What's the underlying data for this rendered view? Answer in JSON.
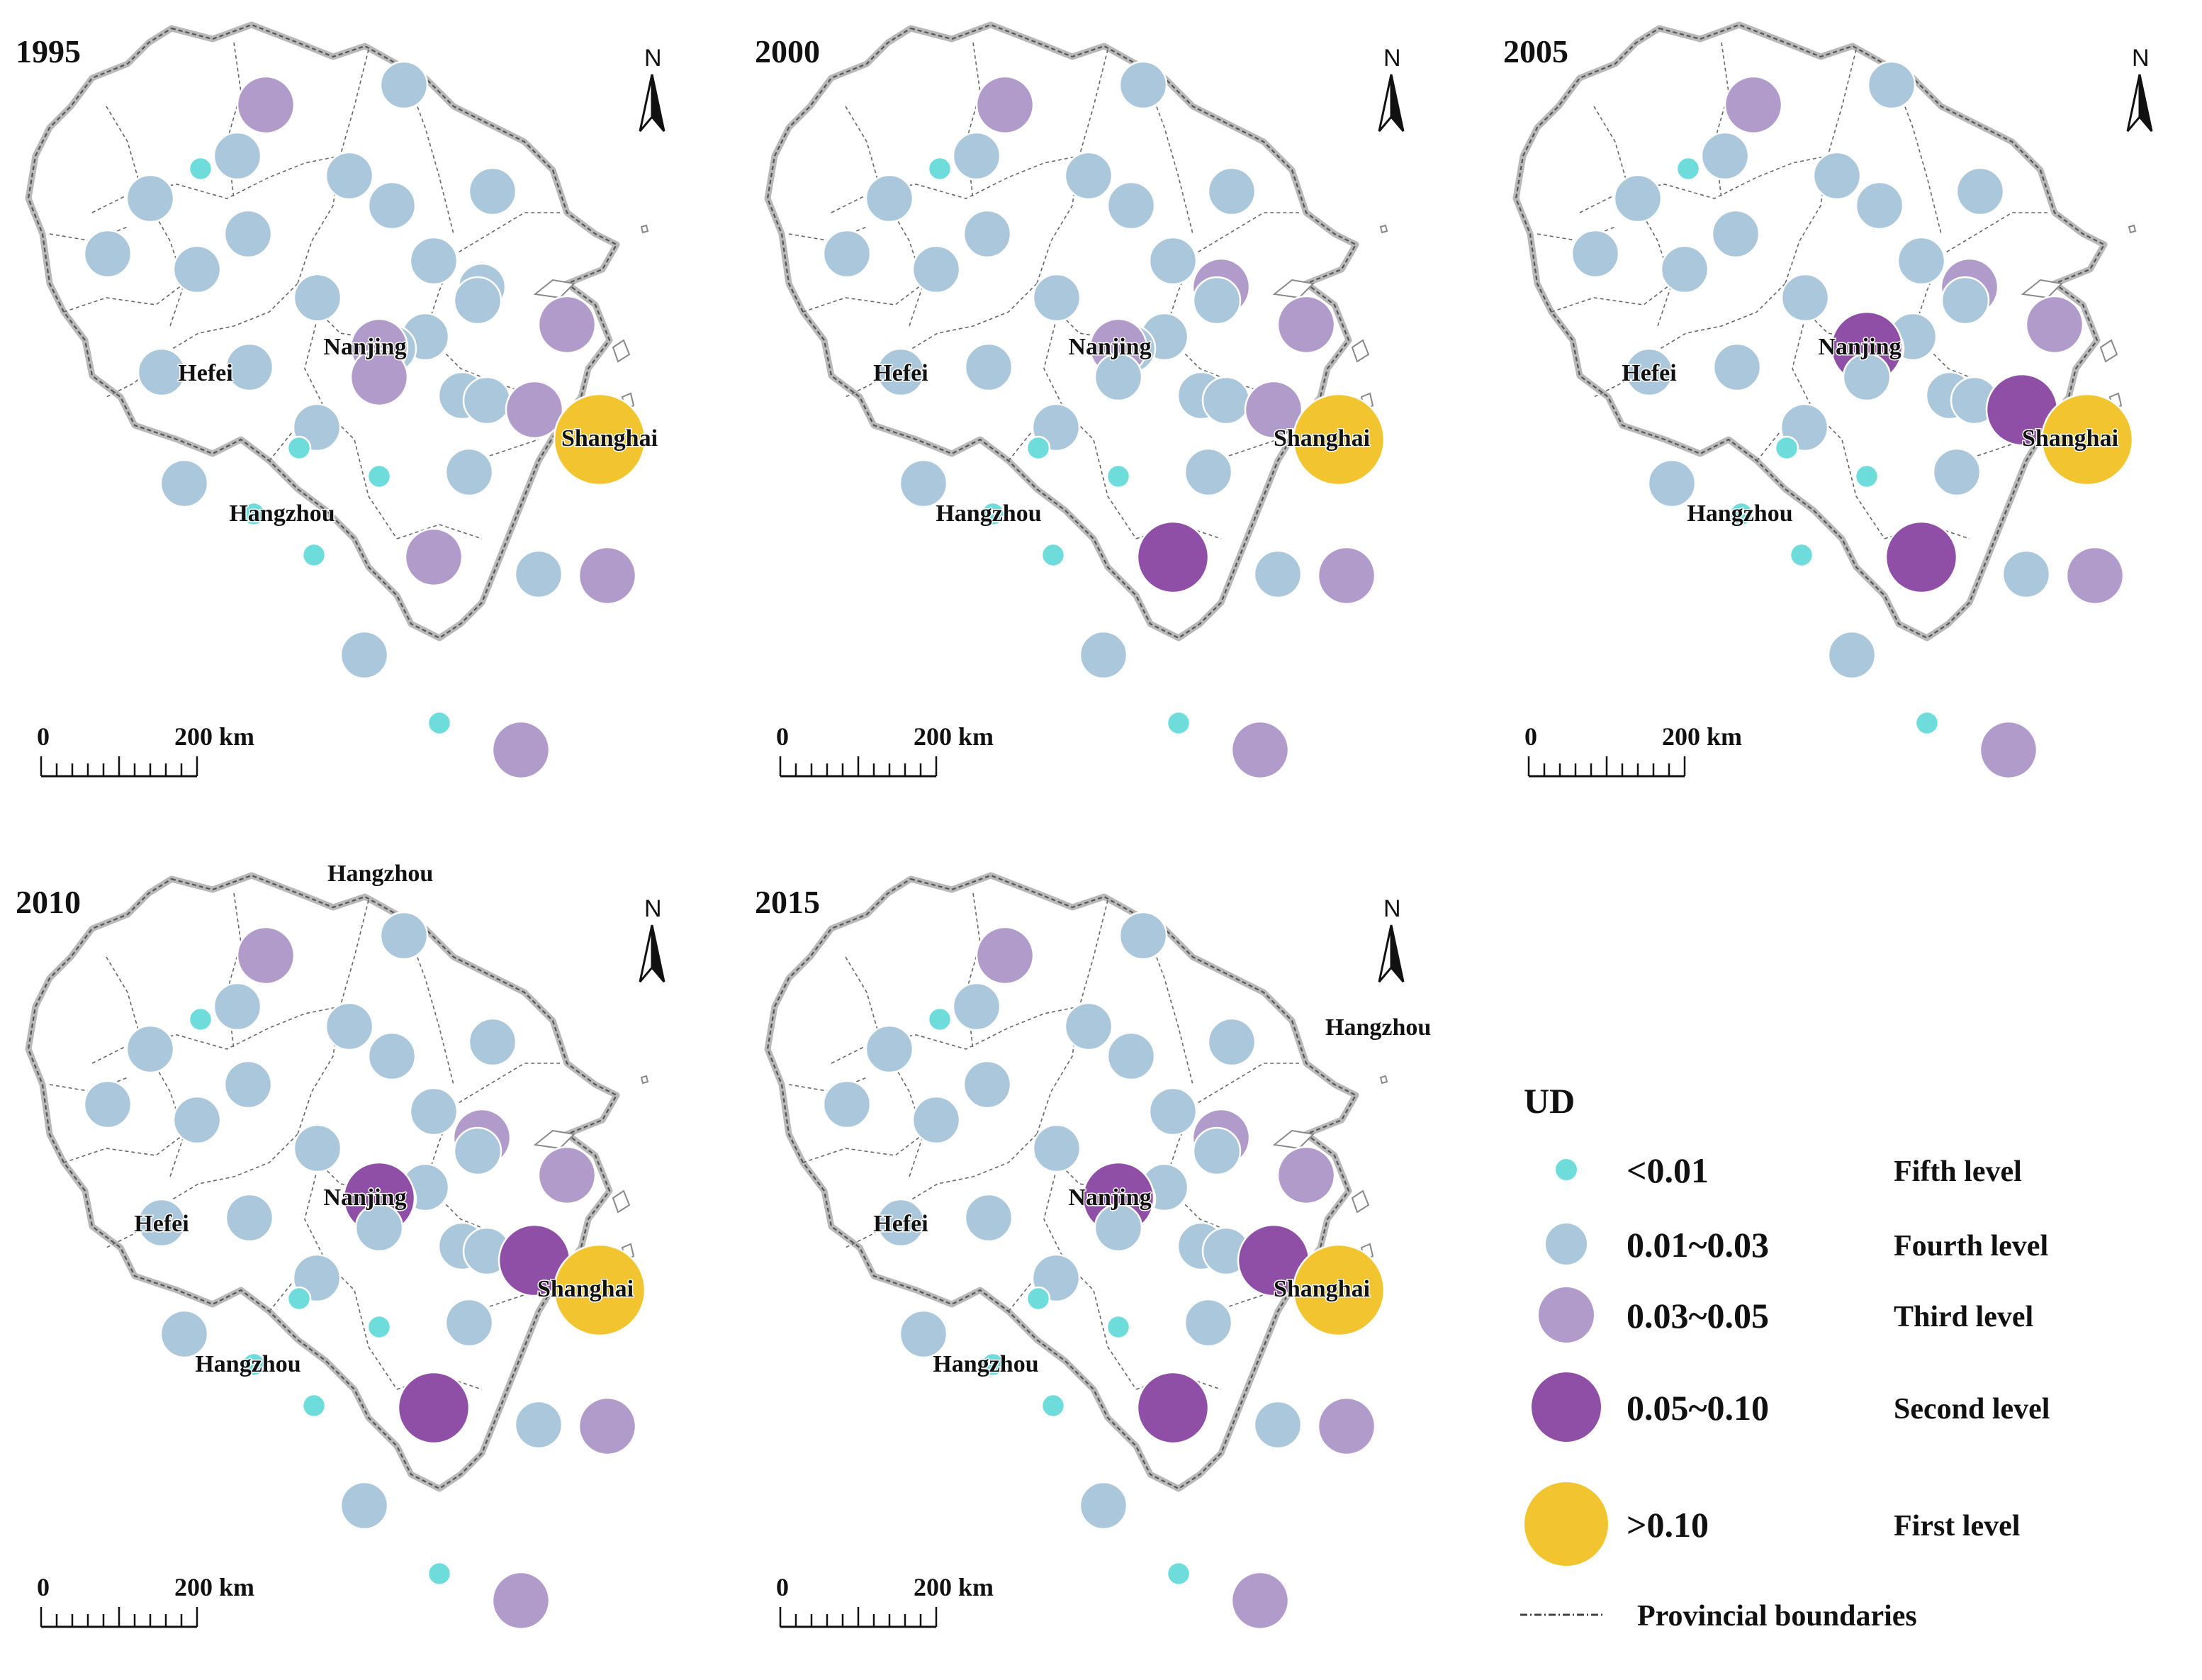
{
  "figure": {
    "legend": {
      "title": "UD",
      "classes": [
        {
          "range": "<0.01",
          "level": "Fifth level",
          "color": "#6fdcdc"
        },
        {
          "range": "0.01~0.03",
          "level": "Fourth level",
          "color": "#aac7dc"
        },
        {
          "range": "0.03~0.05",
          "level": "Third level",
          "color": "#b19bcb"
        },
        {
          "range": "0.05~0.10",
          "level": "Second level",
          "color": "#904fa6"
        },
        {
          "range": ">0.10",
          "level": "First  level",
          "color": "#f2c530"
        }
      ],
      "boundary_label": "Provincial boundaries"
    },
    "scale_bar": {
      "start": "0",
      "end": "200 km"
    },
    "north_label": "N",
    "stray_labels": [
      "Hangzhou",
      "Hangzhou"
    ],
    "panels": [
      {
        "year": "1995",
        "labels": {
          "hefei": "Hefei",
          "nanjing": "Nanjing",
          "shanghai": "Shanghai",
          "hangzhou": "Hangzhou"
        },
        "levels": [
          3,
          4,
          5,
          4,
          4,
          4,
          4,
          4,
          4,
          4,
          4,
          4,
          4,
          4,
          4,
          4,
          4,
          4,
          4,
          3,
          4,
          4,
          3,
          3,
          1,
          4,
          3,
          5,
          4,
          4,
          5,
          5,
          3,
          5,
          4,
          4,
          3,
          5,
          3
        ]
      },
      {
        "year": "2000",
        "labels": {
          "hefei": "Hefei",
          "nanjing": "Nanjing",
          "shanghai": "Shanghai",
          "hangzhou": "Hangzhou"
        },
        "levels": [
          3,
          4,
          5,
          4,
          4,
          4,
          4,
          4,
          4,
          4,
          4,
          4,
          4,
          4,
          4,
          3,
          4,
          4,
          4,
          3,
          4,
          4,
          3,
          3,
          1,
          4,
          4,
          5,
          4,
          4,
          5,
          5,
          2,
          5,
          4,
          4,
          3,
          5,
          3
        ]
      },
      {
        "year": "2005",
        "labels": {
          "hefei": "Hefei",
          "nanjing": "Nanjing",
          "shanghai": "Shanghai",
          "hangzhou": "Hangzhou"
        },
        "levels": [
          3,
          4,
          5,
          4,
          4,
          4,
          4,
          4,
          4,
          4,
          4,
          4,
          4,
          4,
          4,
          3,
          4,
          4,
          4,
          2,
          4,
          4,
          3,
          2,
          1,
          4,
          4,
          5,
          4,
          4,
          5,
          5,
          2,
          5,
          4,
          4,
          3,
          5,
          3
        ]
      },
      {
        "year": "2010",
        "labels": {
          "hefei": "Hefei",
          "nanjing": "Nanjing",
          "shanghai": "Shanghai",
          "hangzhou": "Hangzhou"
        },
        "levels": [
          3,
          4,
          5,
          4,
          4,
          4,
          4,
          4,
          4,
          4,
          4,
          4,
          4,
          4,
          4,
          3,
          4,
          4,
          4,
          2,
          4,
          4,
          3,
          2,
          1,
          4,
          4,
          5,
          4,
          4,
          5,
          5,
          2,
          5,
          4,
          4,
          3,
          5,
          3
        ]
      },
      {
        "year": "2015",
        "labels": {
          "hefei": "Hefei",
          "nanjing": "Nanjing",
          "shanghai": "Shanghai",
          "hangzhou": "Hangzhou"
        },
        "levels": [
          3,
          4,
          5,
          4,
          4,
          4,
          4,
          4,
          4,
          4,
          4,
          4,
          4,
          4,
          4,
          3,
          4,
          4,
          4,
          2,
          4,
          4,
          3,
          2,
          1,
          4,
          4,
          5,
          4,
          4,
          5,
          5,
          2,
          5,
          4,
          4,
          3,
          5,
          3
        ]
      }
    ]
  }
}
